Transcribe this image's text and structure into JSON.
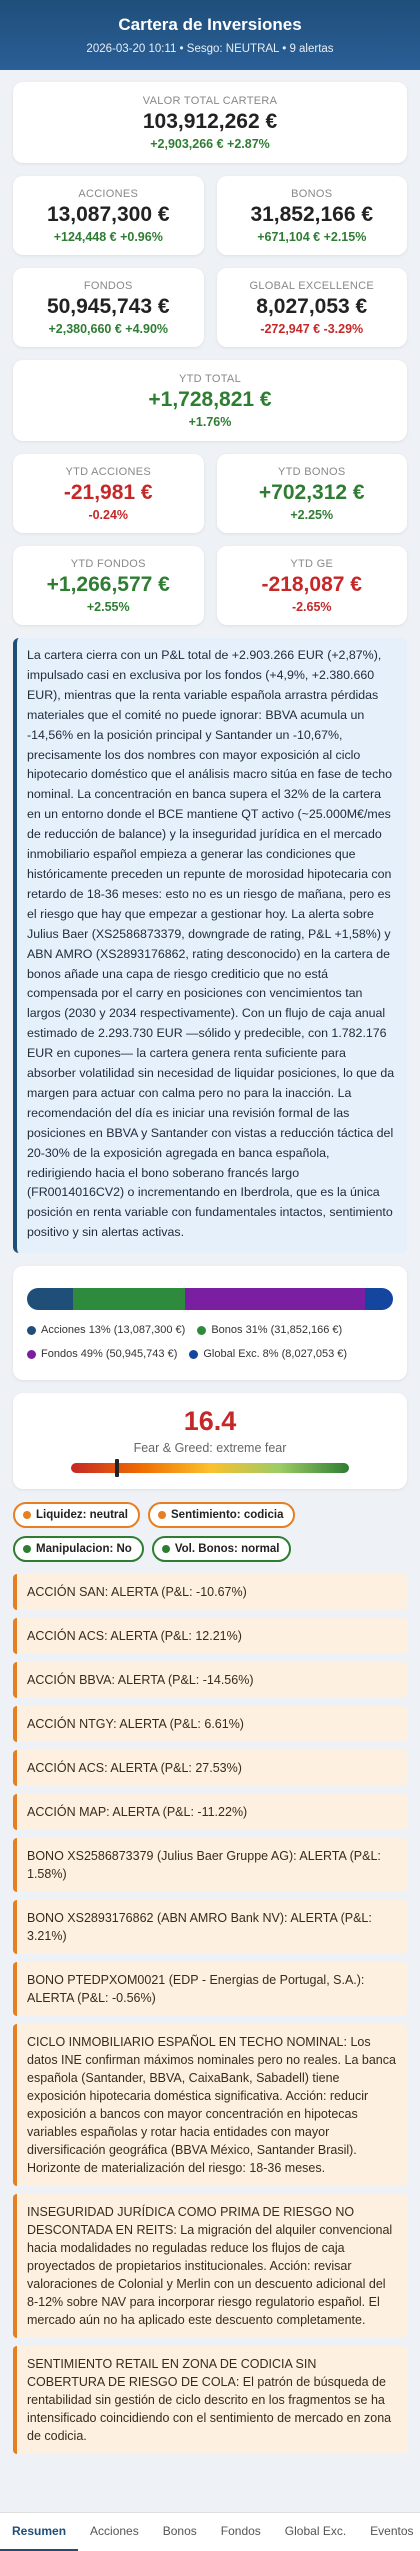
{
  "header": {
    "title": "Cartera de Inversiones",
    "subtitle": "2026-03-20 10:11 • Sesgo: NEUTRAL • 9 alertas"
  },
  "total": {
    "label": "VALOR TOTAL CARTERA",
    "value": "103,912,262 €",
    "delta": "+2,903,266 € +2.87%",
    "tone": "positive"
  },
  "kpi_grid": [
    {
      "label": "ACCIONES",
      "value": "13,087,300 €",
      "delta": "+124,448 € +0.96%",
      "tone": "positive"
    },
    {
      "label": "BONOS",
      "value": "31,852,166 €",
      "delta": "+671,104 € +2.15%",
      "tone": "positive"
    },
    {
      "label": "FONDOS",
      "value": "50,945,743 €",
      "delta": "+2,380,660 € +4.90%",
      "tone": "positive"
    },
    {
      "label": "GLOBAL EXCELLENCE",
      "value": "8,027,053 €",
      "delta": "-272,947 € -3.29%",
      "tone": "negative"
    }
  ],
  "ytd_total": {
    "label": "YTD TOTAL",
    "value": "+1,728,821 €",
    "delta": "+1.76%",
    "tone": "positive"
  },
  "ytd_grid": [
    {
      "label": "YTD ACCIONES",
      "value": "-21,981 €",
      "delta": "-0.24%",
      "tone": "negative"
    },
    {
      "label": "YTD BONOS",
      "value": "+702,312 €",
      "delta": "+2.25%",
      "tone": "positive"
    },
    {
      "label": "YTD FONDOS",
      "value": "+1,266,577 €",
      "delta": "+2.55%",
      "tone": "positive"
    },
    {
      "label": "YTD GE",
      "value": "-218,087 €",
      "delta": "-2.65%",
      "tone": "negative"
    }
  ],
  "commentary": "La cartera cierra con un P&L total de +2.903.266 EUR (+2,87%), impulsado casi en exclusiva por los fondos (+4,9%, +2.380.660 EUR), mientras que la renta variable española arrastra pérdidas materiales que el comité no puede ignorar: BBVA acumula un -14,56% en la posición principal y Santander un -10,67%, precisamente los dos nombres con mayor exposición al ciclo hipotecario doméstico que el análisis macro sitúa en fase de techo nominal. La concentración en banca supera el 32% de la cartera en un entorno donde el BCE mantiene QT activo (~25.000M€/mes de reducción de balance) y la inseguridad jurídica en el mercado inmobiliario español empieza a generar las condiciones que históricamente preceden un repunte de morosidad hipotecaria con retardo de 18-36 meses: esto no es un riesgo de mañana, pero es el riesgo que hay que empezar a gestionar hoy. La alerta sobre Julius Baer (XS2586873379, downgrade de rating, P&L +1,58%) y ABN AMRO (XS2893176862, rating desconocido) en la cartera de bonos añade una capa de riesgo crediticio que no está compensada por el carry en posiciones con vencimientos tan largos (2030 y 2034 respectivamente). Con un flujo de caja anual estimado de 2.293.730 EUR —sólido y predecible, con 1.782.176 EUR en cupones— la cartera genera renta suficiente para absorber volatilidad sin necesidad de liquidar posiciones, lo que da margen para actuar con calma pero no para la inacción. La recomendación del día es iniciar una revisión formal de las posiciones en BBVA y Santander con vistas a reducción táctica del 20-30% de la exposición agregada en banca española, redirigiendo hacia el bono soberano francés largo (FR0014016CV2) o incrementando en Iberdrola, que es la única posición en renta variable con fundamentales intactos, sentimiento positivo y sin alertas activas.",
  "allocation": {
    "items": [
      {
        "label": "Acciones 13% (13,087,300 €)",
        "value": 13087300,
        "color": "#1f4e79"
      },
      {
        "label": "Bonos 31% (31,852,166 €)",
        "value": 31852166,
        "color": "#2e8b3e"
      },
      {
        "label": "Fondos 49% (50,945,743 €)",
        "value": 50945743,
        "color": "#7b1fa2"
      },
      {
        "label": "Global Exc. 8% (8,027,053 €)",
        "value": 8027053,
        "color": "#1446a0"
      }
    ]
  },
  "sentiment": {
    "score": 16.4,
    "label": "Fear & Greed: extreme fear",
    "range": [
      0,
      100
    ]
  },
  "signals": [
    {
      "text": "Liquidez: neutral",
      "tone": "warning"
    },
    {
      "text": "Sentimiento: codicia",
      "tone": "warning"
    },
    {
      "text": "Manipulacion: No",
      "tone": "ok"
    },
    {
      "text": "Vol. Bonos: normal",
      "tone": "ok"
    }
  ],
  "alerts": [
    "ACCIÓN SAN: ALERTA (P&L: -10.67%)",
    "ACCIÓN ACS: ALERTA (P&L: 12.21%)",
    "ACCIÓN BBVA: ALERTA (P&L: -14.56%)",
    "ACCIÓN NTGY: ALERTA (P&L: 6.61%)",
    "ACCIÓN ACS: ALERTA (P&L: 27.53%)",
    "ACCIÓN MAP: ALERTA (P&L: -11.22%)",
    "BONO XS2586873379 (Julius Baer Gruppe AG): ALERTA (P&L: 1.58%)",
    "BONO XS2893176862 (ABN AMRO Bank NV): ALERTA (P&L: 3.21%)",
    "BONO PTEDPXOM0021 (EDP - Energias de Portugal, S.A.): ALERTA (P&L: -0.56%)",
    "CICLO INMOBILIARIO ESPAÑOL EN TECHO NOMINAL: Los datos INE confirman máximos nominales pero no reales. La banca española (Santander, BBVA, CaixaBank, Sabadell) tiene exposición hipotecaria doméstica significativa. Acción: reducir exposición a bancos con mayor concentración en hipotecas variables españolas y rotar hacia entidades con mayor diversificación geográfica (BBVA México, Santander Brasil). Horizonte de materialización del riesgo: 18-36 meses.",
    "INSEGURIDAD JURÍDICA COMO PRIMA DE RIESGO NO DESCONTADA EN REITS: La migración del alquiler convencional hacia modalidades no reguladas reduce los flujos de caja proyectados de propietarios institucionales. Acción: revisar valoraciones de Colonial y Merlin con un descuento adicional del 8-12% sobre NAV para incorporar riesgo regulatorio español. El mercado aún no ha aplicado este descuento completamente.",
    "SENTIMIENTO RETAIL EN ZONA DE CODICIA SIN COBERTURA DE RIESGO DE COLA: El patrón de búsqueda de rentabilidad sin gestión de ciclo descrito en los fragmentos se ha intensificado coincidiendo con el sentimiento de mercado en zona de codicia."
  ],
  "nav": {
    "items": [
      {
        "label": "Resumen",
        "active": true
      },
      {
        "label": "Acciones",
        "active": false
      },
      {
        "label": "Bonos",
        "active": false
      },
      {
        "label": "Fondos",
        "active": false
      },
      {
        "label": "Global Exc.",
        "active": false
      },
      {
        "label": "Eventos",
        "active": false
      }
    ]
  }
}
